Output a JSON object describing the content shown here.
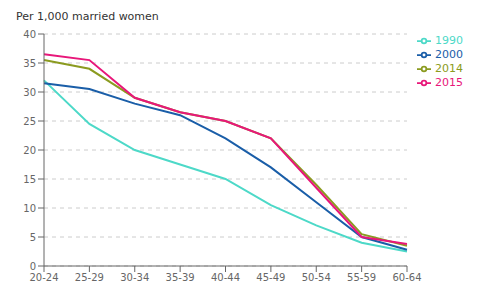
{
  "chart_data": {
    "type": "line",
    "ylabel": "Per 1,000 married women",
    "categories": [
      "20-24",
      "25-29",
      "30-34",
      "35-39",
      "40-44",
      "45-49",
      "50-54",
      "55-59",
      "60-64"
    ],
    "series": [
      {
        "name": "1990",
        "color": "#4DD9C8",
        "values": [
          32.0,
          24.5,
          20.0,
          17.5,
          15.0,
          10.5,
          7.0,
          4.0,
          2.5
        ]
      },
      {
        "name": "2000",
        "color": "#1A5EA8",
        "values": [
          31.5,
          30.5,
          28.0,
          26.0,
          22.0,
          17.0,
          11.0,
          5.0,
          2.8
        ]
      },
      {
        "name": "2014",
        "color": "#8B9B20",
        "values": [
          35.5,
          34.0,
          29.0,
          26.5,
          25.0,
          22.0,
          14.0,
          5.5,
          3.5
        ]
      },
      {
        "name": "2015",
        "color": "#E8177A",
        "values": [
          36.5,
          35.5,
          29.0,
          26.5,
          25.0,
          22.0,
          13.5,
          5.0,
          3.8
        ]
      }
    ],
    "ylim": [
      0,
      40
    ],
    "yticks": [
      0,
      5,
      10,
      15,
      20,
      25,
      30,
      35,
      40
    ],
    "grid": true,
    "legend": "upper right"
  }
}
